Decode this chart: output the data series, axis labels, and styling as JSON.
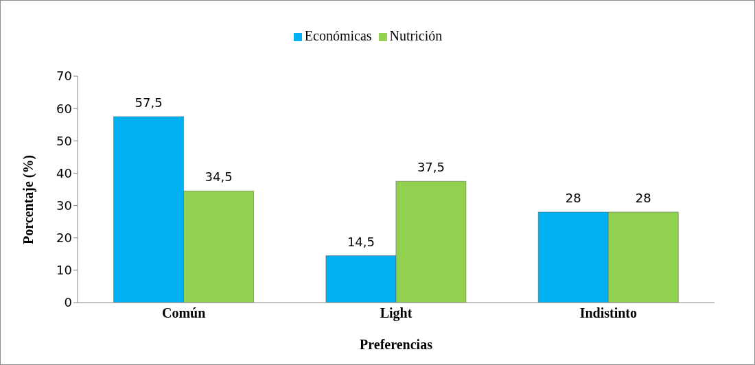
{
  "chart_data": {
    "type": "bar",
    "xlabel": "Preferencias",
    "ylabel": "Porcentaje (%)",
    "categories": [
      "Común",
      "Light",
      "Indistinto"
    ],
    "series": [
      {
        "name": "Económicas",
        "color": "#00b0f0",
        "values": [
          57.5,
          14.5,
          28
        ],
        "value_labels": [
          "57,5",
          "14,5",
          "28"
        ]
      },
      {
        "name": "Nutrición",
        "color": "#92d050",
        "values": [
          34.5,
          37.5,
          28
        ],
        "value_labels": [
          "34,5",
          "37,5",
          "28"
        ]
      }
    ],
    "ylim": [
      0,
      70
    ],
    "yticks": [
      0,
      10,
      20,
      30,
      40,
      50,
      60,
      70
    ],
    "grid": false,
    "legend": "top"
  }
}
